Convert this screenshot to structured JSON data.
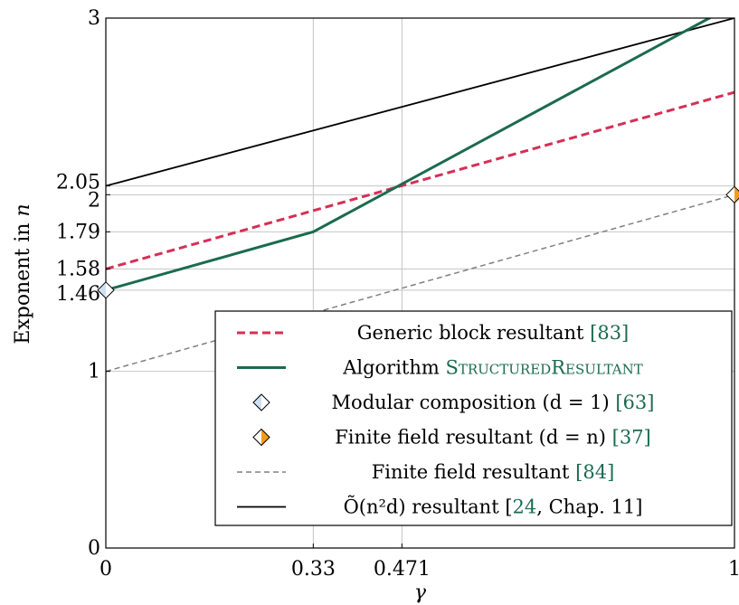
{
  "chart_data": {
    "type": "line",
    "xlabel": "γ",
    "ylabel": "Exponent in n",
    "xlim": [
      0,
      1
    ],
    "ylim": [
      0,
      3
    ],
    "grid": true,
    "x_ticks": [
      {
        "value": 0,
        "label": "0"
      },
      {
        "value": 0.33,
        "label": "0.33"
      },
      {
        "value": 0.471,
        "label": "0.471"
      },
      {
        "value": 1,
        "label": "1"
      }
    ],
    "y_ticks": [
      {
        "value": 0,
        "label": "0"
      },
      {
        "value": 1,
        "label": "1"
      },
      {
        "value": 1.46,
        "label": "1.46"
      },
      {
        "value": 1.58,
        "label": "1.58"
      },
      {
        "value": 1.79,
        "label": "1.79"
      },
      {
        "value": 2,
        "label": "2"
      },
      {
        "value": 2.05,
        "label": "2.05"
      },
      {
        "value": 3,
        "label": "3"
      }
    ],
    "legend_position": "bottom-right",
    "series": [
      {
        "key": "generic",
        "color": "#d62f55",
        "style": "dashed-thick",
        "points": [
          [
            0,
            1.58
          ],
          [
            1,
            2.58
          ]
        ],
        "legend": {
          "text": "Generic block resultant ",
          "ref": "[83]"
        }
      },
      {
        "key": "structured",
        "color": "#1b6b4e",
        "style": "solid-thick",
        "points": [
          [
            0,
            1.46
          ],
          [
            0.33,
            1.79
          ],
          [
            0.96,
            3
          ],
          [
            1,
            3.08
          ]
        ],
        "legend": {
          "text": "Algorithm ",
          "sc": "StructuredResultant"
        }
      },
      {
        "key": "modular",
        "color": "#cfe0f2",
        "style": "marker-diamond",
        "points": [
          [
            0,
            1.46
          ]
        ],
        "legend": {
          "text": "Modular composition (d = 1) ",
          "ref": "[63]"
        }
      },
      {
        "key": "finitefield-dn",
        "color": "#f39c1b",
        "style": "marker-diamond-half",
        "points": [
          [
            1,
            2
          ]
        ],
        "legend": {
          "text": "Finite field resultant (d = n) ",
          "ref": "[37]"
        }
      },
      {
        "key": "finitefield",
        "color": "#808080",
        "style": "dashed-thin",
        "points": [
          [
            0,
            1
          ],
          [
            1,
            2
          ]
        ],
        "legend": {
          "text": "Finite field resultant ",
          "ref": "[84]"
        }
      },
      {
        "key": "soft-o",
        "color": "#000000",
        "style": "solid-thin",
        "points": [
          [
            0,
            2.05
          ],
          [
            1,
            3
          ]
        ],
        "legend": {
          "text": "Õ(n²d) resultant ",
          "ref": "[24",
          "tail": ", Chap. 11]"
        }
      }
    ]
  }
}
